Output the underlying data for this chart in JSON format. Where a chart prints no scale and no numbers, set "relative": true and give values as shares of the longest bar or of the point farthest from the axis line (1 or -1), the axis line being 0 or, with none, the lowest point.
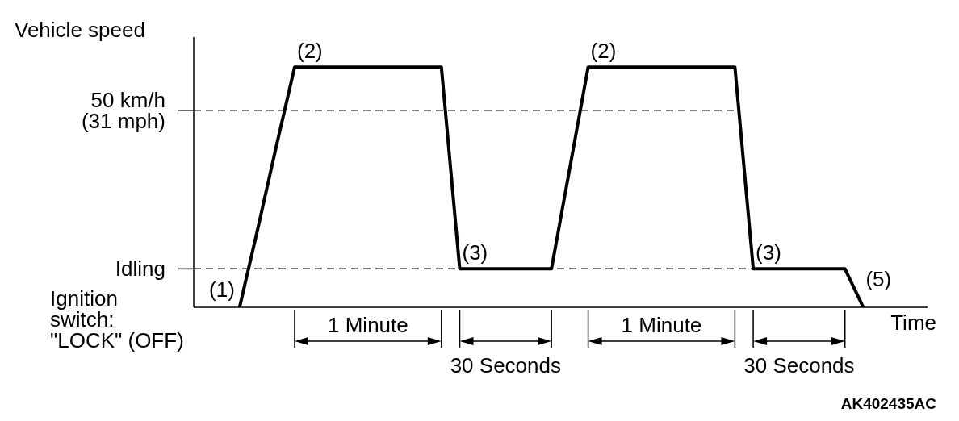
{
  "chart_data": {
    "type": "line",
    "ylabel": "Vehicle speed",
    "xlabel": "Time",
    "relative": true,
    "categories": [
      null,
      null,
      null,
      null,
      null,
      null,
      null,
      null,
      null,
      null,
      null,
      null,
      null,
      null,
      null,
      null,
      null,
      null,
      null,
      null,
      null,
      null,
      null,
      null,
      null,
      null,
      null,
      null,
      null,
      null,
      null,
      null,
      null,
      null,
      null,
      null,
      null,
      null,
      null,
      null
    ],
    "series": [
      {
        "color": "#000000",
        "values": [
          null,
          null,
          0,
          0.33,
          0.67,
          1,
          1,
          1,
          1,
          1,
          1,
          1,
          1,
          1,
          0.16,
          0.16,
          0.16,
          0.16,
          0.16,
          0.16,
          0.58,
          1,
          1,
          1,
          1,
          1,
          1,
          1,
          1,
          1,
          0.16,
          0.16,
          0.16,
          0.16,
          0.16,
          0.16,
          0,
          null,
          null,
          null
        ]
      }
    ],
    "ref_lines": [
      {
        "axis": "y",
        "value": 0.82,
        "label": "50 km/h\n(31 mph)",
        "line_style": "dashed"
      },
      {
        "axis": "y",
        "value": 0.16,
        "label": "Idling",
        "line_style": "dashed"
      }
    ],
    "annotations": [
      {
        "text": "(2)",
        "y": 1
      },
      {
        "text": "(3)",
        "y": 0.16
      },
      {
        "text": "(2)",
        "y": 1
      },
      {
        "text": "(3)",
        "y": 0.16
      },
      "(1)",
      "(5)",
      "Ignition\nswitch:\n\"LOCK\" (OFF)",
      "1 Minute",
      "30 Seconds",
      "1 Minute",
      "30 Seconds",
      "AK402435AC"
    ]
  }
}
